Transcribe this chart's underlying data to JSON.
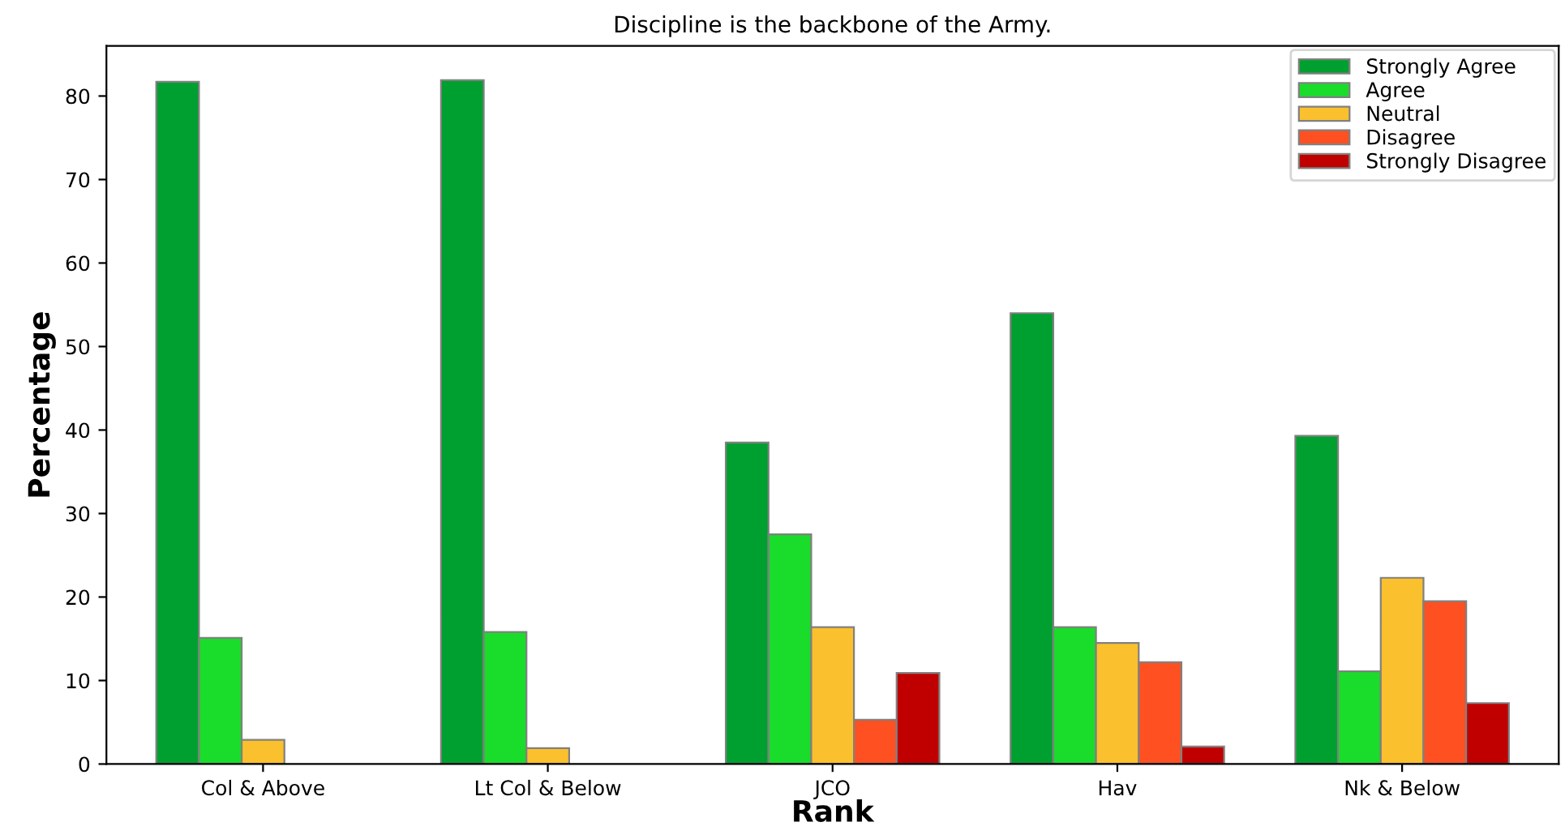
{
  "chart_data": {
    "type": "bar",
    "title": "Discipline is the backbone of the Army.",
    "xlabel": "Rank",
    "ylabel": "Percentage",
    "categories": [
      "Col & Above",
      "Lt Col & Below",
      "JCO",
      "Hav",
      "Nk & Below"
    ],
    "series": [
      {
        "name": "Strongly Agree",
        "color": "#00a030",
        "values": [
          81.7,
          81.9,
          38.5,
          54.0,
          39.3
        ]
      },
      {
        "name": "Agree",
        "color": "#1adc2a",
        "values": [
          15.1,
          15.8,
          27.5,
          16.4,
          11.1
        ]
      },
      {
        "name": "Neutral",
        "color": "#fbc02d",
        "values": [
          2.9,
          1.9,
          16.4,
          14.5,
          22.3
        ]
      },
      {
        "name": "Disagree",
        "color": "#ff5022",
        "values": [
          null,
          null,
          5.3,
          12.2,
          19.5
        ]
      },
      {
        "name": "Strongly Disagree",
        "color": "#c00000",
        "values": [
          null,
          null,
          10.9,
          2.1,
          7.3
        ]
      }
    ],
    "ylim": [
      0,
      86
    ],
    "yticks": [
      0,
      10,
      20,
      30,
      40,
      50,
      60,
      70,
      80
    ],
    "grid": false,
    "legend": "top right"
  }
}
